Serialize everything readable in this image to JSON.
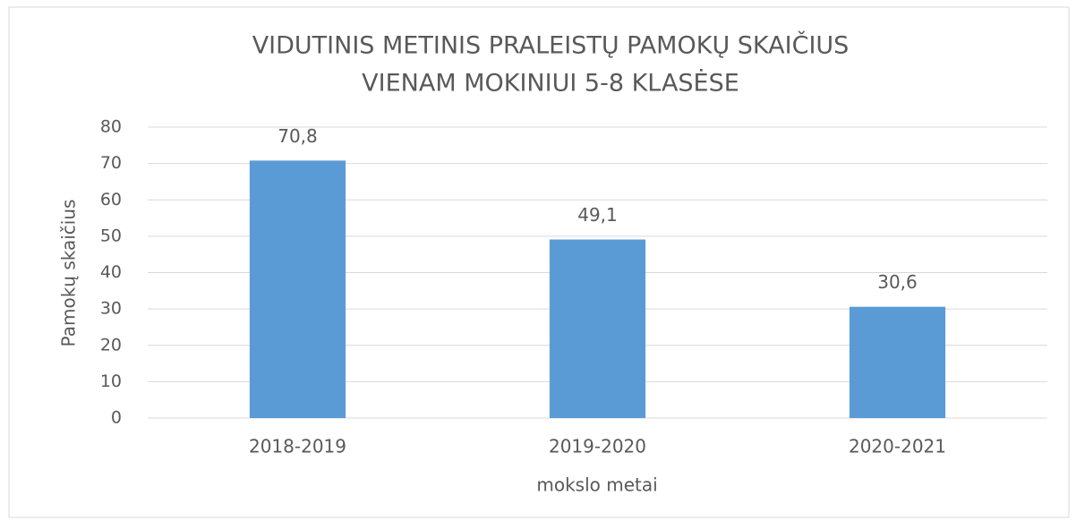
{
  "chart_data": {
    "type": "bar",
    "title": [
      "VIDUTINIS METINIS PRALEISTŲ PAMOKŲ SKAIČIUS",
      "VIENAM MOKINIUI 5-8 KLASĖSE"
    ],
    "x_label": "mokslo metai",
    "y_label": "Pamokų skaičius",
    "categories": [
      "2018-2019",
      "2019-2020",
      "2020-2021"
    ],
    "values": [
      70.8,
      49.1,
      30.6
    ],
    "value_labels": [
      "70,8",
      "49,1",
      "30,6"
    ],
    "color": "#5b9bd5",
    "ylim": [
      0,
      80
    ],
    "yticks": [
      0,
      10,
      20,
      30,
      40,
      50,
      60,
      70,
      80
    ],
    "grid": true
  }
}
